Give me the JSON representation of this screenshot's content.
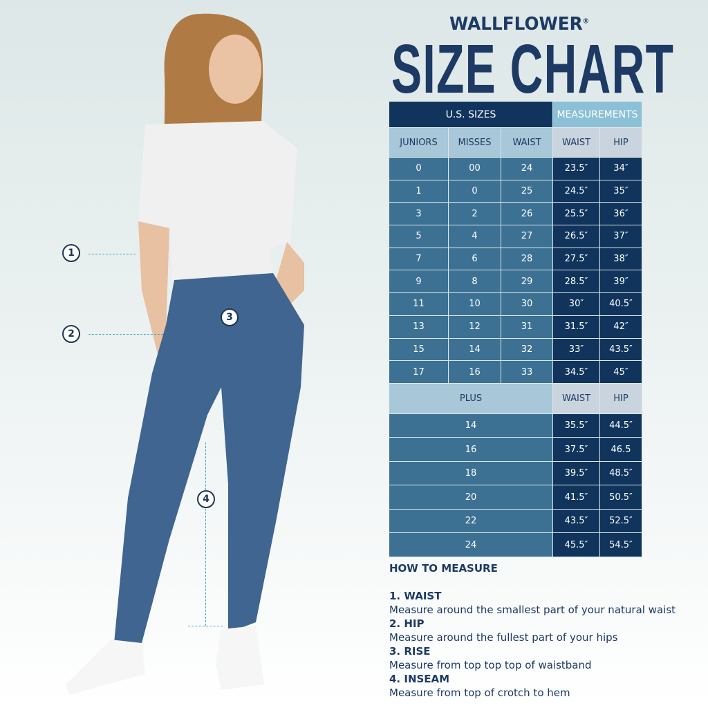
{
  "brand": "WALLFLOWER",
  "brand_mark": "®",
  "title": "SIZE CHART",
  "table": {
    "group_headers": [
      "U.S. SIZES",
      "MEASUREMENTS"
    ],
    "columns": [
      "JUNIORS",
      "MISSES",
      "WAIST",
      "WAIST",
      "HIP"
    ],
    "rows": [
      [
        "0",
        "00",
        "24",
        "23.5″",
        "34″"
      ],
      [
        "1",
        "0",
        "25",
        "24.5″",
        "35″"
      ],
      [
        "3",
        "2",
        "26",
        "25.5″",
        "36″"
      ],
      [
        "5",
        "4",
        "27",
        "26.5″",
        "37″"
      ],
      [
        "7",
        "6",
        "28",
        "27.5″",
        "38″"
      ],
      [
        "9",
        "8",
        "29",
        "28.5″",
        "39″"
      ],
      [
        "11",
        "10",
        "30",
        "30″",
        "40.5″"
      ],
      [
        "13",
        "12",
        "31",
        "31.5″",
        "42″"
      ],
      [
        "15",
        "14",
        "32",
        "33″",
        "43.5″"
      ],
      [
        "17",
        "16",
        "33",
        "34.5″",
        "45″"
      ]
    ],
    "plus_columns": [
      "PLUS",
      "WAIST",
      "HIP"
    ],
    "plus_rows": [
      [
        "14",
        "35.5″",
        "44.5″"
      ],
      [
        "16",
        "37.5″",
        "46.5"
      ],
      [
        "18",
        "39.5″",
        "48.5″"
      ],
      [
        "20",
        "41.5″",
        "50.5″"
      ],
      [
        "22",
        "43.5″",
        "52.5″"
      ],
      [
        "24",
        "45.5″",
        "54.5″"
      ]
    ]
  },
  "how_to": {
    "heading": "HOW TO MEASURE",
    "items": [
      {
        "title": "1. WAIST",
        "text": "Measure around the smallest part of your natural waist"
      },
      {
        "title": "2. HIP",
        "text": "Measure around the fullest part of your hips"
      },
      {
        "title": "3. RISE",
        "text": "Measure from top top top of waistband"
      },
      {
        "title": "4. INSEAM",
        "text": "Measure from top of crotch to hem"
      }
    ]
  },
  "markers": [
    "1",
    "2",
    "3",
    "4"
  ],
  "colors": {
    "navy": "#10345c",
    "mid_blue": "#3d7194",
    "light_blue": "#a8c7d8",
    "measurement_header": "#8cc0d6",
    "gray_header": "#c9d4de",
    "dash": "#3aa6c2"
  }
}
